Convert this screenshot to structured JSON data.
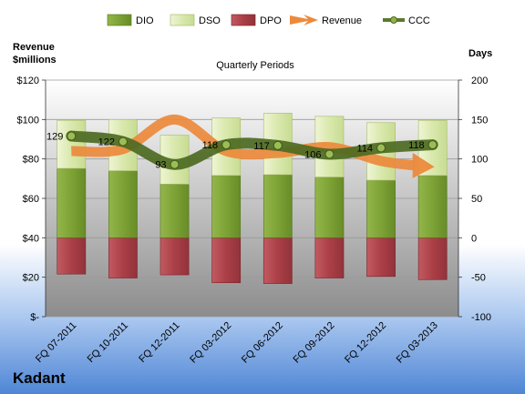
{
  "chart_data": {
    "type": "bar",
    "title": "Quarterly Periods",
    "company": "Kadant",
    "left_axis_label_line1": "Revenue",
    "left_axis_label_line2": "$millions",
    "right_axis_label": "Days",
    "left_ylim": [
      0,
      120
    ],
    "right_ylim": [
      -100,
      200
    ],
    "left_ticks": [
      "$-",
      "$20",
      "$40",
      "$60",
      "$80",
      "$100",
      "$120"
    ],
    "left_tick_values": [
      0,
      20,
      40,
      60,
      80,
      100,
      120
    ],
    "right_ticks": [
      "-100",
      "-50",
      "0",
      "50",
      "100",
      "150",
      "200"
    ],
    "right_tick_values": [
      -100,
      -50,
      0,
      50,
      100,
      150,
      200
    ],
    "categories": [
      "FQ 07-2011",
      "FQ 10-2011",
      "FQ 12-2011",
      "FQ 03-2012",
      "FQ 06-2012",
      "FQ 09-2012",
      "FQ 12-2012",
      "FQ 03-2013"
    ],
    "series": [
      {
        "name": "DIO",
        "axis": "right",
        "values": [
          88,
          85,
          68,
          79,
          80,
          77,
          73,
          79
        ]
      },
      {
        "name": "DSO",
        "axis": "right",
        "values": [
          61,
          65,
          62,
          73,
          78,
          77,
          73,
          70
        ]
      },
      {
        "name": "DPO",
        "axis": "right",
        "values": [
          -46,
          -51,
          -47,
          -57,
          -58,
          -51,
          -49,
          -53
        ]
      },
      {
        "name": "Revenue",
        "axis": "left",
        "values": [
          84,
          85,
          100,
          84,
          83,
          86,
          79,
          76
        ]
      },
      {
        "name": "CCC",
        "axis": "right",
        "values": [
          129,
          122,
          93,
          118,
          117,
          106,
          114,
          118
        ]
      }
    ],
    "data_labels": [
      "129",
      "122",
      "93",
      "118",
      "117",
      "106",
      "114",
      "118"
    ],
    "legend_position": "top",
    "grid": true,
    "colors": {
      "DIO": "#7fa33a",
      "DSO": "#dbe9b0",
      "DPO": "#b84b52",
      "Revenue": "#ec8a3c",
      "CCC": "#5a7a2c"
    }
  }
}
